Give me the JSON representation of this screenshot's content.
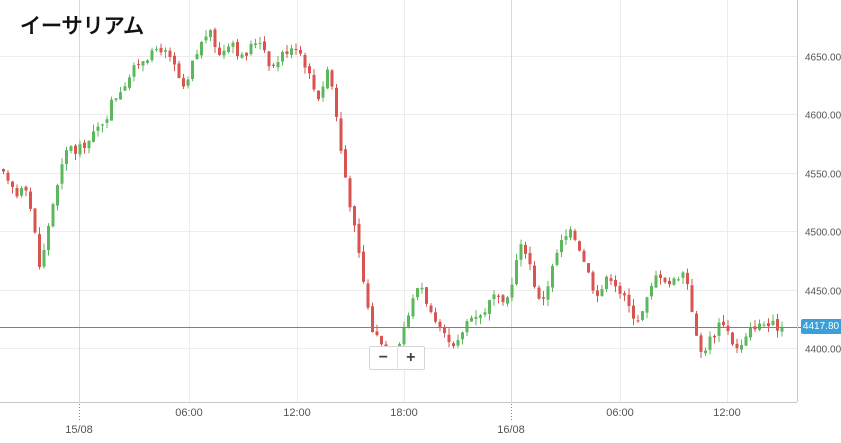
{
  "chart_data": {
    "type": "candlestick",
    "title": "イーサリアム",
    "x_tick_labels": [
      "06:00",
      "12:00",
      "18:00",
      "06:00",
      "12:00"
    ],
    "date_labels": [
      "15/08",
      "16/08"
    ],
    "y_ticks": [
      4400,
      4450,
      4500,
      4550,
      4600,
      4650
    ],
    "y_tick_labels": [
      "4400.00",
      "4450.00",
      "4500.00",
      "4550.00",
      "4600.00",
      "4650.00"
    ],
    "ylim": [
      4365,
      4700
    ],
    "current_price": 4417.8,
    "current_price_label": "4417.80",
    "grid": true,
    "colors": {
      "up": "#5cb85c",
      "down": "#d9534f",
      "price_line": "#2ba3a8",
      "grid": "#ececec"
    },
    "close_path": [
      4548,
      4540,
      4540,
      4528,
      4535,
      4545,
      4535,
      4515,
      4495,
      4470,
      4480,
      4500,
      4520,
      4530,
      4545,
      4560,
      4570,
      4575,
      4565,
      4570,
      4575,
      4575,
      4580,
      4585,
      4590,
      4595,
      4600,
      4610,
      4615,
      4620,
      4625,
      4630,
      4635,
      4640,
      4645,
      4648,
      4650,
      4650,
      4655,
      4658,
      4655,
      4650,
      4645,
      4640,
      4630,
      4620,
      4625,
      4640,
      4650,
      4655,
      4665,
      4670,
      4668,
      4660,
      4650,
      4655,
      4660,
      4665,
      4660,
      4650,
      4648,
      4652,
      4658,
      4662,
      4665,
      4660,
      4650,
      4640,
      4642,
      4648,
      4652,
      4655,
      4658,
      4660,
      4655,
      4648,
      4640,
      4630,
      4620,
      4615,
      4625,
      4640,
      4630,
      4610,
      4580,
      4560,
      4540,
      4520,
      4500,
      4480,
      4460,
      4440,
      4420,
      4410,
      4410,
      4405,
      4400,
      4395,
      4398,
      4405,
      4415,
      4425,
      4435,
      4445,
      4455,
      4452,
      4440,
      4430,
      4420,
      4415,
      4410,
      4408,
      4400,
      4398,
      4405,
      4415,
      4422,
      4430,
      4428,
      4425,
      4430,
      4435,
      4440,
      4445,
      4440,
      4435,
      4440,
      4452,
      4468,
      4480,
      4490,
      4482,
      4470,
      4455,
      4440,
      4442,
      4450,
      4462,
      4475,
      4485,
      4492,
      4495,
      4498,
      4495,
      4488,
      4480,
      4470,
      4458,
      4450,
      4448,
      4452,
      4458,
      4462,
      4458,
      4450,
      4445,
      4440,
      4432,
      4428,
      4425,
      4430,
      4440,
      4448,
      4458,
      4465,
      4462,
      4458,
      4455,
      4458,
      4462,
      4465,
      4462,
      4445,
      4420,
      4400,
      4395,
      4402,
      4408,
      4412,
      4420,
      4425,
      4418,
      4410,
      4402,
      4398,
      4402,
      4408,
      4415,
      4420,
      4418,
      4420,
      4422,
      4418,
      4420,
      4418,
      4417.8
    ]
  }
}
